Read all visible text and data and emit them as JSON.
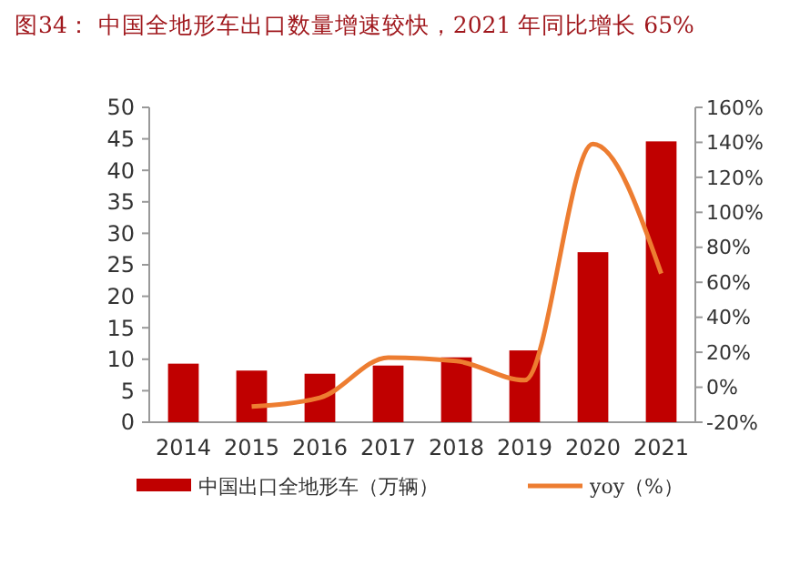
{
  "chart_data": {
    "type": "bar",
    "title": "图34：   中国全地形车出口数量增速较快，2021 年同比增长 65%",
    "categories": [
      "2014",
      "2015",
      "2016",
      "2017",
      "2018",
      "2019",
      "2020",
      "2021"
    ],
    "series": [
      {
        "name": "中国出口全地形车（万辆）",
        "color": "#c00000",
        "values": [
          9.3,
          8.2,
          7.7,
          9.0,
          10.3,
          11.4,
          27.0,
          44.6
        ]
      },
      {
        "name": "yoy（%）",
        "type": "line",
        "axis": "y2",
        "color": "#ed7d31",
        "values": [
          null,
          -11,
          -6,
          17,
          15,
          4,
          139,
          65
        ]
      }
    ],
    "ylim": [
      0,
      50
    ],
    "yticks": [
      0,
      5,
      10,
      15,
      20,
      25,
      30,
      35,
      40,
      45,
      50
    ],
    "y2lim": [
      -20,
      160
    ],
    "y2ticks": [
      {
        "value": -20,
        "label": "-20%"
      },
      {
        "value": 0,
        "label": "0%"
      },
      {
        "value": 20,
        "label": "20%"
      },
      {
        "value": 40,
        "label": "40%"
      },
      {
        "value": 60,
        "label": "60%"
      },
      {
        "value": 80,
        "label": "80%"
      },
      {
        "value": 100,
        "label": "100%"
      },
      {
        "value": 120,
        "label": "120%"
      },
      {
        "value": 140,
        "label": "140%"
      },
      {
        "value": 160,
        "label": "160%"
      }
    ],
    "legend": "bottom",
    "marker": "none"
  }
}
